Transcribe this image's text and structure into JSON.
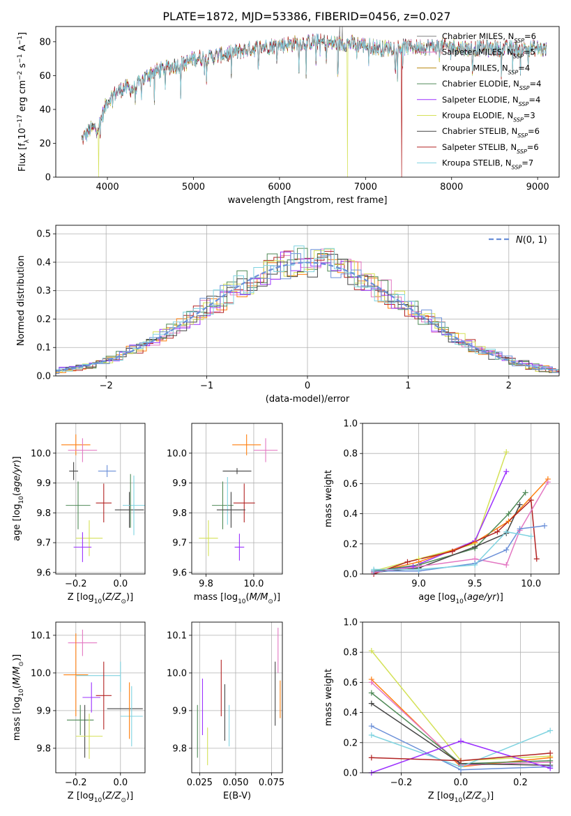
{
  "figure": {
    "title": "PLATE=1872, MJD=53386, FIBERID=0456, z=0.027"
  },
  "models": [
    {
      "name": "Chabrier MILES",
      "nssp": "6",
      "color": "#7f7f7f"
    },
    {
      "name": "Salpeter MILES",
      "nssp": "5",
      "color": "#e377c2"
    },
    {
      "name": "Kroupa MILES",
      "nssp": "4",
      "color": "#b8860b"
    },
    {
      "name": "Chabrier ELODIE",
      "nssp": "4",
      "color": "#4f8a57"
    },
    {
      "name": "Salpeter ELODIE",
      "nssp": "4",
      "color": "#9b30ff"
    },
    {
      "name": "Kroupa ELODIE",
      "nssp": "3",
      "color": "#d4e157"
    },
    {
      "name": "Chabrier STELIB",
      "nssp": "6",
      "color": "#444444"
    },
    {
      "name": "Salpeter STELIB",
      "nssp": "6",
      "color": "#b22222"
    },
    {
      "name": "Kroupa STELIB",
      "nssp": "7",
      "color": "#7fd3e0"
    }
  ],
  "chart_data": [
    {
      "id": "spectrum",
      "type": "line",
      "xlabel_prefix": "wavelength [Angstrom, rest frame]",
      "ylabel": "Flux [f",
      "xlim": [
        3400,
        9250
      ],
      "ylim": [
        0,
        89
      ],
      "xticks": [
        4000,
        5000,
        6000,
        7000,
        8000,
        9000
      ],
      "yticks": [
        0,
        20,
        40,
        60,
        80
      ],
      "legend_position": "right",
      "x_range": [
        3700,
        9100
      ],
      "continuum": [
        [
          3700,
          22
        ],
        [
          3800,
          28
        ],
        [
          3900,
          30
        ],
        [
          4000,
          45
        ],
        [
          4100,
          50
        ],
        [
          4200,
          53
        ],
        [
          4300,
          52
        ],
        [
          4400,
          57
        ],
        [
          4500,
          62
        ],
        [
          4600,
          63
        ],
        [
          4700,
          65
        ],
        [
          4800,
          66
        ],
        [
          4900,
          67
        ],
        [
          5000,
          70
        ],
        [
          5200,
          71
        ],
        [
          5400,
          73
        ],
        [
          5600,
          75
        ],
        [
          5800,
          77
        ],
        [
          6000,
          78
        ],
        [
          6200,
          79
        ],
        [
          6400,
          80
        ],
        [
          6600,
          79
        ],
        [
          6800,
          79
        ],
        [
          7000,
          78
        ],
        [
          7200,
          76
        ],
        [
          7400,
          77
        ],
        [
          7600,
          77
        ],
        [
          7800,
          77
        ],
        [
          8000,
          77
        ],
        [
          8200,
          76
        ],
        [
          8600,
          76
        ],
        [
          9000,
          76
        ],
        [
          9100,
          75
        ]
      ],
      "dropouts": [
        {
          "x": 3900,
          "model": 5
        },
        {
          "x": 6790,
          "model": 5
        },
        {
          "x": 7420,
          "model": 7
        }
      ],
      "spikes": [
        {
          "x": 6700,
          "y": 89
        },
        {
          "x": 6730,
          "y": 89
        }
      ]
    },
    {
      "id": "residuals",
      "type": "histogram",
      "xlabel": "(data-model)/error",
      "ylabel": "Normed distribution",
      "xlim": [
        -2.5,
        2.5
      ],
      "ylim": [
        0,
        0.53
      ],
      "xticks": [
        -2,
        -1,
        0,
        1,
        2
      ],
      "yticks": [
        0.0,
        0.1,
        0.2,
        0.3,
        0.4,
        0.5
      ],
      "bin_width": 0.1,
      "reference_curve": {
        "label": "N(0,1)",
        "mean": 0,
        "sigma": 1,
        "color": "#6a8fd8"
      },
      "legend_position": "upper right"
    },
    {
      "id": "age_vs_Z",
      "type": "scatter_errorbar",
      "xlabel": "Z [log10(Z/Z⊙)]",
      "ylabel": "age [log10(age/yr)]",
      "xlim": [
        -0.29,
        0.11
      ],
      "ylim": [
        9.595,
        10.1
      ],
      "xticks": [
        -0.2,
        0.0
      ],
      "yticks": [
        9.6,
        9.7,
        9.8,
        9.9,
        10.0
      ],
      "points": [
        {
          "x": -0.21,
          "y": 9.94,
          "ex": 0.02,
          "ey": 0.03,
          "c": 6
        },
        {
          "x": -0.2,
          "y": 10.028,
          "ex": 0.065,
          "ey": 0.035,
          "c": 2
        },
        {
          "x": -0.17,
          "y": 10.01,
          "ex": 0.065,
          "ey": 0.04,
          "c": 1
        },
        {
          "x": -0.06,
          "y": 9.94,
          "ex": 0.04,
          "ey": 0.02,
          "c": 9
        },
        {
          "x": -0.19,
          "y": 9.825,
          "ex": 0.055,
          "ey": 0.08,
          "c": 3
        },
        {
          "x": -0.14,
          "y": 9.715,
          "ex": 0.06,
          "ey": 0.06,
          "c": 5
        },
        {
          "x": -0.17,
          "y": 9.685,
          "ex": 0.04,
          "ey": 0.05,
          "c": 4
        },
        {
          "x": -0.075,
          "y": 9.833,
          "ex": 0.035,
          "ey": 0.065,
          "c": 7
        },
        {
          "x": 0.04,
          "y": 9.81,
          "ex": 0.065,
          "ey": 0.06,
          "c": 6
        },
        {
          "x": 0.06,
          "y": 9.825,
          "ex": 0.05,
          "ey": 0.1,
          "c": 8
        },
        {
          "x": 0.045,
          "y": 9.84,
          "ex": 0.0,
          "ey": 0.09,
          "c": 3
        }
      ]
    },
    {
      "id": "age_vs_mass",
      "type": "scatter_errorbar",
      "xlabel": "mass [log10(M/M⊙)]",
      "ylabel": "",
      "xlim": [
        9.74,
        10.12
      ],
      "ylim": [
        9.595,
        10.1
      ],
      "xticks": [
        9.8,
        10.0
      ],
      "yticks": [
        9.6,
        9.7,
        9.8,
        9.9,
        10.0
      ],
      "points": [
        {
          "x": 9.97,
          "y": 10.028,
          "ex": 0.06,
          "ey": 0.035,
          "c": 2
        },
        {
          "x": 10.05,
          "y": 10.01,
          "ex": 0.05,
          "ey": 0.04,
          "c": 1
        },
        {
          "x": 9.93,
          "y": 9.94,
          "ex": 0.06,
          "ey": 0.01,
          "c": 6
        },
        {
          "x": 9.87,
          "y": 9.825,
          "ex": 0.045,
          "ey": 0.08,
          "c": 3
        },
        {
          "x": 9.89,
          "y": 9.84,
          "ex": 0.0,
          "ey": 0.08,
          "c": 8
        },
        {
          "x": 9.81,
          "y": 9.715,
          "ex": 0.04,
          "ey": 0.06,
          "c": 5
        },
        {
          "x": 9.94,
          "y": 9.685,
          "ex": 0.02,
          "ey": 0.045,
          "c": 4
        },
        {
          "x": 9.96,
          "y": 9.833,
          "ex": 0.045,
          "ey": 0.065,
          "c": 7
        },
        {
          "x": 9.905,
          "y": 9.81,
          "ex": 0.06,
          "ey": 0.06,
          "c": 6
        }
      ]
    },
    {
      "id": "weight_vs_age",
      "type": "line",
      "xlabel": "age [log10(age/yr)]",
      "ylabel": "mass weight",
      "xlim": [
        8.5,
        10.25
      ],
      "ylim": [
        0,
        1
      ],
      "xticks": [
        9.0,
        9.5,
        10.0
      ],
      "yticks": [
        0.0,
        0.2,
        0.4,
        0.6,
        0.8,
        1.0
      ],
      "series": [
        {
          "c": 5,
          "points": [
            [
              8.6,
              0.02
            ],
            [
              9.0,
              0.1
            ],
            [
              9.5,
              0.2
            ],
            [
              9.78,
              0.81
            ]
          ]
        },
        {
          "c": 4,
          "points": [
            [
              8.6,
              0.02
            ],
            [
              8.95,
              0.05
            ],
            [
              9.5,
              0.22
            ],
            [
              9.78,
              0.68
            ]
          ]
        },
        {
          "c": 2,
          "points": [
            [
              8.6,
              0.01
            ],
            [
              9.0,
              0.08
            ],
            [
              9.5,
              0.21
            ],
            [
              9.8,
              0.35
            ],
            [
              10.15,
              0.63
            ]
          ]
        },
        {
          "c": 3,
          "points": [
            [
              8.6,
              0.02
            ],
            [
              9.0,
              0.06
            ],
            [
              9.5,
              0.17
            ],
            [
              9.8,
              0.4
            ],
            [
              9.95,
              0.54
            ]
          ]
        },
        {
          "c": 6,
          "points": [
            [
              8.6,
              0.01
            ],
            [
              9.0,
              0.04
            ],
            [
              9.5,
              0.18
            ],
            [
              9.78,
              0.27
            ],
            [
              9.9,
              0.46
            ]
          ]
        },
        {
          "c": 7,
          "points": [
            [
              8.6,
              0.0
            ],
            [
              8.9,
              0.08
            ],
            [
              9.3,
              0.15
            ],
            [
              9.7,
              0.28
            ],
            [
              10.0,
              0.49
            ],
            [
              10.05,
              0.1
            ]
          ]
        },
        {
          "c": 1,
          "points": [
            [
              8.6,
              0.01
            ],
            [
              9.0,
              0.05
            ],
            [
              9.5,
              0.1
            ],
            [
              9.78,
              0.06
            ],
            [
              9.9,
              0.29
            ],
            [
              10.15,
              0.61
            ]
          ]
        },
        {
          "c": 9,
          "points": [
            [
              8.6,
              0.02
            ],
            [
              9.0,
              0.02
            ],
            [
              9.5,
              0.07
            ],
            [
              9.78,
              0.16
            ],
            [
              9.9,
              0.3
            ],
            [
              10.12,
              0.32
            ]
          ]
        },
        {
          "c": 8,
          "points": [
            [
              8.6,
              0.03
            ],
            [
              9.0,
              0.03
            ],
            [
              9.5,
              0.06
            ],
            [
              9.78,
              0.28
            ],
            [
              10.0,
              0.25
            ]
          ]
        }
      ]
    },
    {
      "id": "mass_vs_Z",
      "type": "scatter_errorbar",
      "xlabel": "Z [log10(Z/Z⊙)]",
      "ylabel": "mass [log10(M/M⊙)]",
      "xlim": [
        -0.29,
        0.11
      ],
      "ylim": [
        9.735,
        10.135
      ],
      "xticks": [
        -0.2,
        0.0
      ],
      "yticks": [
        9.8,
        9.9,
        10.0,
        10.1
      ],
      "points": [
        {
          "x": -0.17,
          "y": 10.08,
          "ex": 0.065,
          "ey": 0.035,
          "c": 1
        },
        {
          "x": -0.2,
          "y": 9.995,
          "ex": 0.055,
          "ey": 0.11,
          "c": 2
        },
        {
          "x": -0.1,
          "y": 9.993,
          "ex": 0.1,
          "ey": 0.0,
          "c": 8
        },
        {
          "x": 0.0,
          "y": 9.99,
          "ex": 0.0,
          "ey": 0.04,
          "c": 8
        },
        {
          "x": -0.13,
          "y": 9.935,
          "ex": 0.04,
          "ey": 0.04,
          "c": 4
        },
        {
          "x": -0.075,
          "y": 9.94,
          "ex": 0.035,
          "ey": 0.09,
          "c": 7
        },
        {
          "x": 0.02,
          "y": 9.905,
          "ex": 0.08,
          "ey": 0.0,
          "c": 6
        },
        {
          "x": -0.18,
          "y": 9.875,
          "ex": 0.06,
          "ey": 0.04,
          "c": 3
        },
        {
          "x": -0.16,
          "y": 9.845,
          "ex": 0.0,
          "ey": 0.07,
          "c": 6
        },
        {
          "x": -0.14,
          "y": 9.832,
          "ex": 0.06,
          "ey": 0.06,
          "c": 5
        },
        {
          "x": 0.05,
          "y": 9.885,
          "ex": 0.05,
          "ey": 0.08,
          "c": 8
        },
        {
          "x": 0.04,
          "y": 9.9,
          "ex": 0.0,
          "ey": 0.075,
          "c": 2
        }
      ]
    },
    {
      "id": "mass_vs_ebv",
      "type": "scatter_errorbar",
      "xlabel": "E(B-V)",
      "ylabel": "",
      "xlim": [
        0.0195,
        0.0825
      ],
      "ylim": [
        9.735,
        10.135
      ],
      "xticks": [
        0.025,
        0.05,
        0.075
      ],
      "yticks": [
        9.8,
        9.9,
        10.0,
        10.1
      ],
      "points": [
        {
          "x": 0.0235,
          "y": 9.845,
          "ex": 0,
          "ey": 0.07,
          "c": 3
        },
        {
          "x": 0.027,
          "y": 9.91,
          "ex": 0,
          "ey": 0.075,
          "c": 4
        },
        {
          "x": 0.0305,
          "y": 9.805,
          "ex": 0,
          "ey": 0.05,
          "c": 5
        },
        {
          "x": 0.04,
          "y": 9.96,
          "ex": 0,
          "ey": 0.075,
          "c": 7
        },
        {
          "x": 0.0425,
          "y": 9.895,
          "ex": 0,
          "ey": 0.075,
          "c": 6
        },
        {
          "x": 0.0455,
          "y": 9.86,
          "ex": 0,
          "ey": 0.055,
          "c": 8
        },
        {
          "x": 0.0775,
          "y": 9.945,
          "ex": 0,
          "ey": 0.085,
          "c": 6
        },
        {
          "x": 0.0795,
          "y": 10.06,
          "ex": 0,
          "ey": 0.06,
          "c": 1
        },
        {
          "x": 0.081,
          "y": 9.93,
          "ex": 0,
          "ey": 0.05,
          "c": 2
        }
      ]
    },
    {
      "id": "weight_vs_Z",
      "type": "line",
      "xlabel": "Z [log10(Z/Z⊙)]",
      "ylabel": "mass weight",
      "xlim": [
        -0.33,
        0.33
      ],
      "ylim": [
        0,
        1
      ],
      "xticks": [
        -0.2,
        0.0,
        0.2
      ],
      "yticks": [
        0.0,
        0.2,
        0.4,
        0.6,
        0.8,
        1.0
      ],
      "series": [
        {
          "c": 5,
          "points": [
            [
              -0.3,
              0.81
            ],
            [
              0.0,
              0.08
            ],
            [
              0.3,
              0.11
            ]
          ]
        },
        {
          "c": 2,
          "points": [
            [
              -0.3,
              0.62
            ],
            [
              0.0,
              0.04
            ],
            [
              0.3,
              0.1
            ]
          ]
        },
        {
          "c": 1,
          "points": [
            [
              -0.3,
              0.6
            ],
            [
              0.0,
              0.05
            ],
            [
              0.3,
              0.07
            ]
          ]
        },
        {
          "c": 3,
          "points": [
            [
              -0.3,
              0.53
            ],
            [
              0.0,
              0.06
            ],
            [
              0.3,
              0.08
            ]
          ]
        },
        {
          "c": 6,
          "points": [
            [
              -0.3,
              0.46
            ],
            [
              0.0,
              0.06
            ],
            [
              0.3,
              0.05
            ]
          ]
        },
        {
          "c": 9,
          "points": [
            [
              -0.3,
              0.31
            ],
            [
              0.0,
              0.02
            ],
            [
              0.3,
              0.04
            ]
          ]
        },
        {
          "c": 8,
          "points": [
            [
              -0.3,
              0.25
            ],
            [
              0.0,
              0.04
            ],
            [
              0.3,
              0.28
            ]
          ]
        },
        {
          "c": 4,
          "points": [
            [
              -0.3,
              0.0
            ],
            [
              0.0,
              0.21
            ],
            [
              0.3,
              0.03
            ]
          ]
        },
        {
          "c": 7,
          "points": [
            [
              -0.3,
              0.1
            ],
            [
              0.0,
              0.08
            ],
            [
              0.3,
              0.13
            ]
          ]
        }
      ]
    }
  ]
}
